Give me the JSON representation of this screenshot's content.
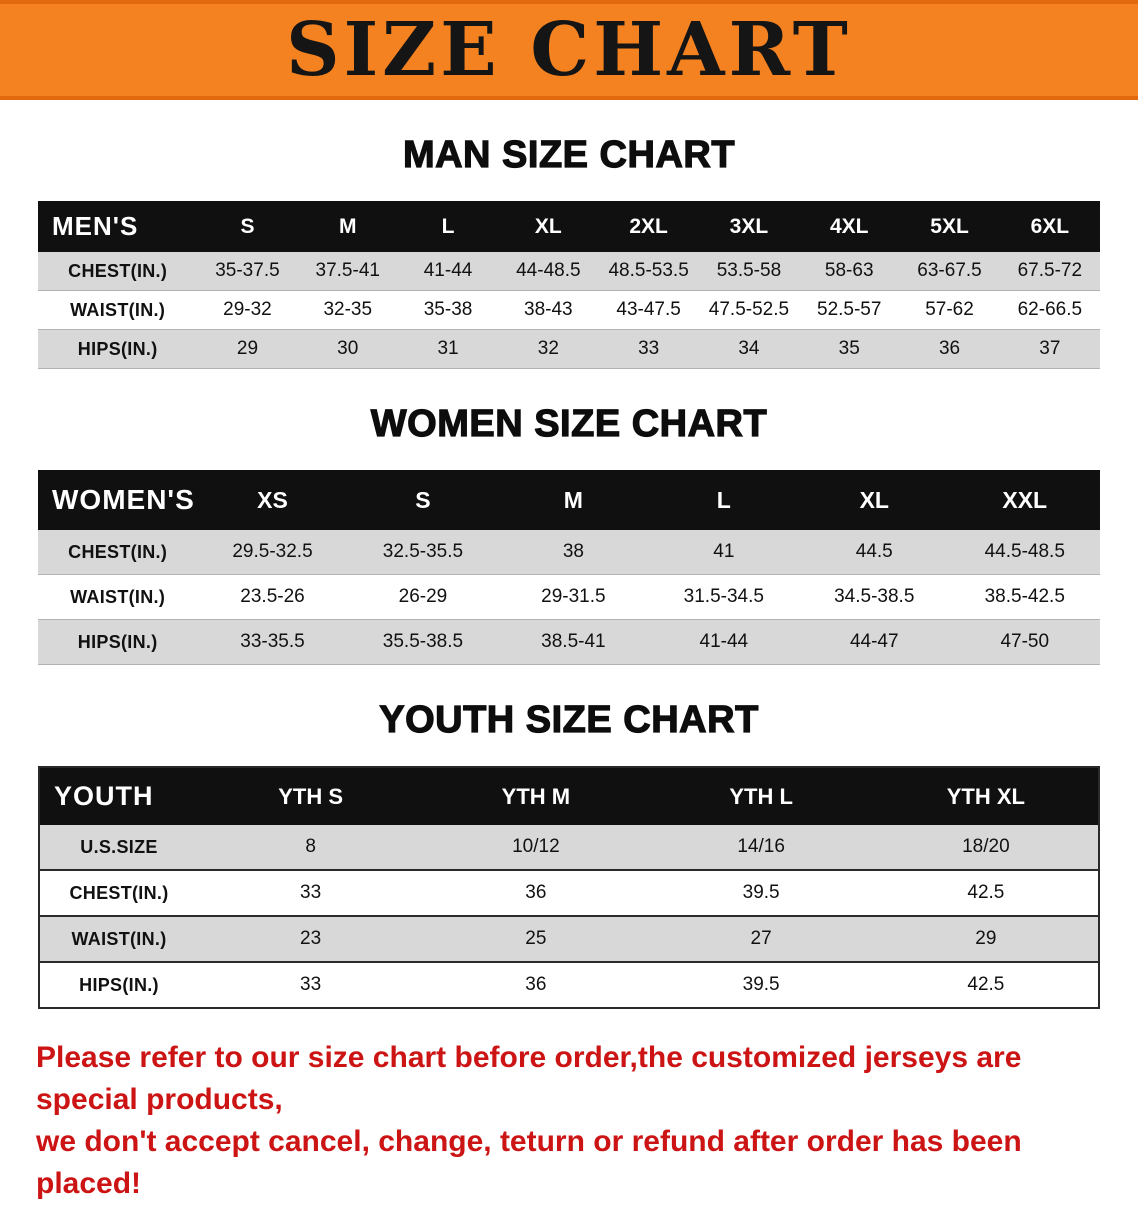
{
  "banner": {
    "title": "SIZE CHART",
    "bg_color": "#F58220",
    "text_color": "#151515"
  },
  "footer_note": {
    "line1": "Please refer to our size chart before order,the customized jerseys are special products,",
    "line2": "we don't accept cancel, change, teturn or refund after order has been placed!",
    "color": "#CC1414"
  },
  "chart_data": [
    {
      "type": "table",
      "name": "men-size-table",
      "title": "MAN SIZE CHART",
      "header": [
        "MEN'S",
        "S",
        "M",
        "L",
        "XL",
        "2XL",
        "3XL",
        "4XL",
        "5XL",
        "6XL"
      ],
      "rows": [
        [
          "CHEST(IN.)",
          "35-37.5",
          "37.5-41",
          "41-44",
          "44-48.5",
          "48.5-53.5",
          "53.5-58",
          "58-63",
          "63-67.5",
          "67.5-72"
        ],
        [
          "WAIST(IN.)",
          "29-32",
          "32-35",
          "35-38",
          "38-43",
          "43-47.5",
          "47.5-52.5",
          "52.5-57",
          "57-62",
          "62-66.5"
        ],
        [
          "HIPS(IN.)",
          "29",
          "30",
          "31",
          "32",
          "33",
          "34",
          "35",
          "36",
          "37"
        ]
      ]
    },
    {
      "type": "table",
      "name": "women-size-table",
      "title": "WOMEN SIZE CHART",
      "header": [
        "WOMEN'S",
        "XS",
        "S",
        "M",
        "L",
        "XL",
        "XXL"
      ],
      "rows": [
        [
          "CHEST(IN.)",
          "29.5-32.5",
          "32.5-35.5",
          "38",
          "41",
          "44.5",
          "44.5-48.5"
        ],
        [
          "WAIST(IN.)",
          "23.5-26",
          "26-29",
          "29-31.5",
          "31.5-34.5",
          "34.5-38.5",
          "38.5-42.5"
        ],
        [
          "HIPS(IN.)",
          "33-35.5",
          "35.5-38.5",
          "38.5-41",
          "41-44",
          "44-47",
          "47-50"
        ]
      ]
    },
    {
      "type": "table",
      "name": "youth-size-table",
      "title": "YOUTH SIZE CHART",
      "header": [
        "YOUTH",
        "YTH S",
        "YTH M",
        "YTH L",
        "YTH XL"
      ],
      "rows": [
        [
          "U.S.SIZE",
          "8",
          "10/12",
          "14/16",
          "18/20"
        ],
        [
          "CHEST(IN.)",
          "33",
          "36",
          "39.5",
          "42.5"
        ],
        [
          "WAIST(IN.)",
          "23",
          "25",
          "27",
          "29"
        ],
        [
          "HIPS(IN.)",
          "33",
          "36",
          "39.5",
          "42.5"
        ]
      ]
    }
  ]
}
